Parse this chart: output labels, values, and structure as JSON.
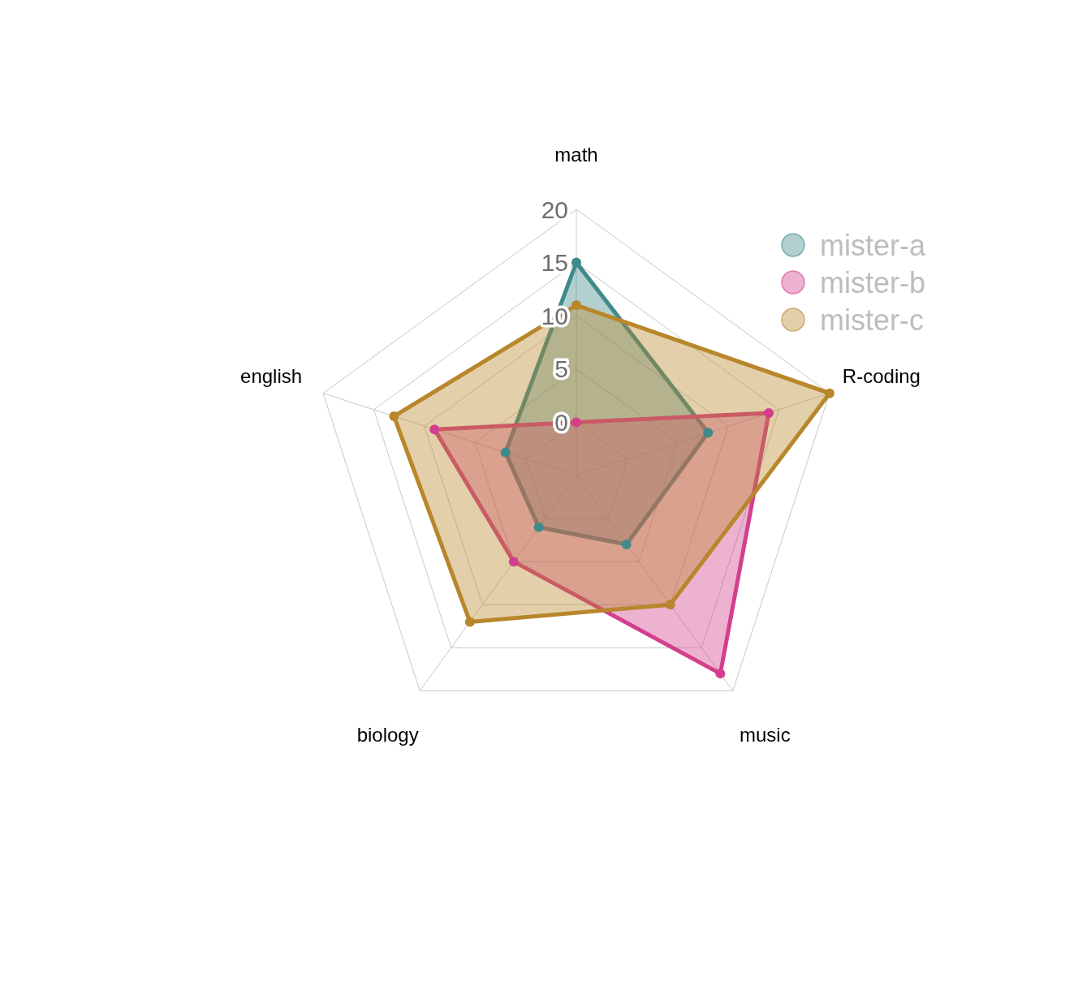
{
  "chart_data": {
    "type": "radar",
    "categories": [
      "math",
      "R-coding",
      "music",
      "biology",
      "english"
    ],
    "series": [
      {
        "name": "mister-a",
        "color": "#3f8a8a",
        "values": [
          15,
          8,
          3,
          1,
          2
        ]
      },
      {
        "name": "mister-b",
        "color": "#d43f8d",
        "values": [
          0,
          14,
          18,
          5,
          9
        ]
      },
      {
        "name": "mister-c",
        "color": "#b8862b",
        "values": [
          11,
          20,
          10,
          12,
          13
        ]
      }
    ],
    "ylim": [
      -5,
      20
    ],
    "yticks": [
      0,
      5,
      10,
      15,
      20
    ],
    "grid": true,
    "legend": "top right",
    "marker": "circle",
    "line_style": "solid"
  }
}
